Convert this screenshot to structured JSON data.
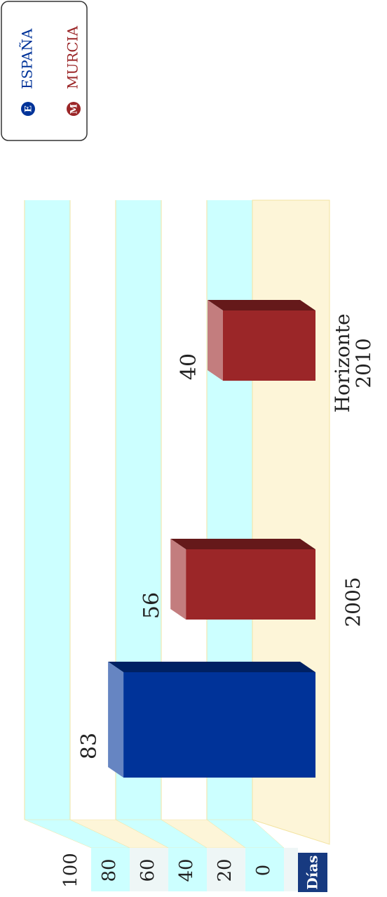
{
  "chart_data": {
    "type": "bar3d",
    "axis_title": "Días",
    "categories": [
      "2005",
      "Horizonte 2010"
    ],
    "series": [
      {
        "name": "ESPAÑA",
        "icon": "E",
        "color": "#003399",
        "values": [
          83,
          null
        ]
      },
      {
        "name": "MURCIA",
        "icon": "M",
        "color": "#9b2628",
        "values": [
          56,
          40
        ]
      }
    ],
    "ylim": [
      0,
      100
    ],
    "yticks": [
      0,
      20,
      40,
      60,
      80,
      100
    ],
    "grid": true,
    "legend": "top-right"
  }
}
